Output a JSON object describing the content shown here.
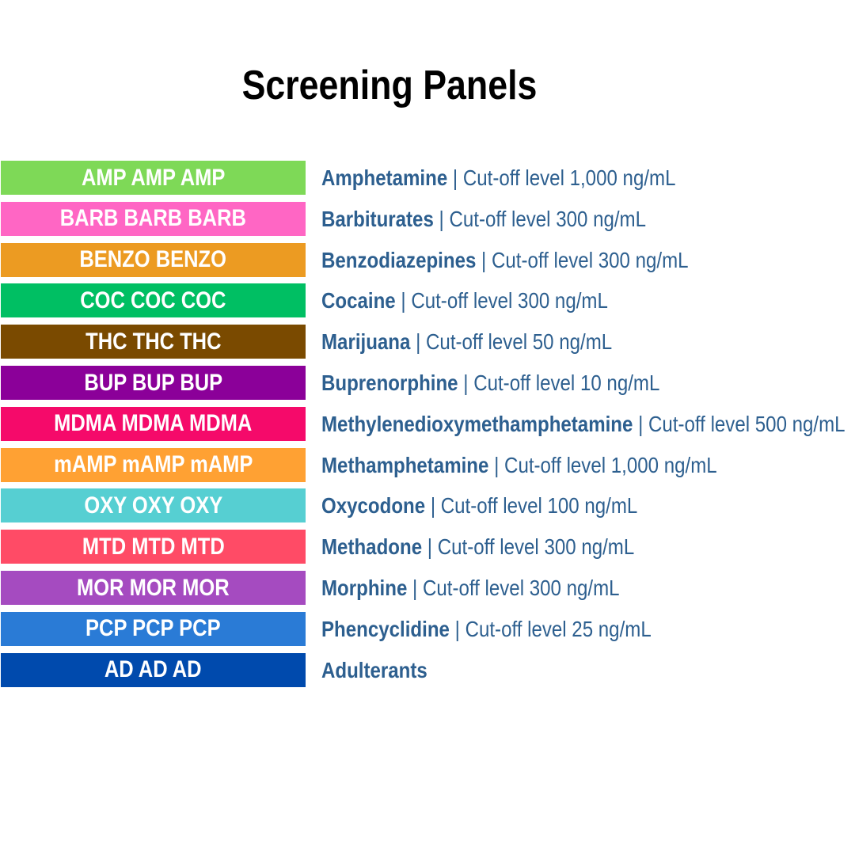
{
  "header": {
    "title": "Screening Panels"
  },
  "panels": [
    {
      "badge": "AMP AMP AMP",
      "color": "#7ed957",
      "name": "Amphetamine",
      "detail": "| Cut-off level 1,000 ng/mL"
    },
    {
      "badge": "BARB BARB BARB",
      "color": "#ff66c4",
      "name": "Barbiturates",
      "detail": "| Cut-off level 300 ng/mL"
    },
    {
      "badge": "BENZO BENZO",
      "color": "#ec9b22",
      "name": "Benzodiazepines",
      "detail": "| Cut-off level 300 ng/mL"
    },
    {
      "badge": "COC COC COC",
      "color": "#00bf63",
      "name": "Cocaine",
      "detail": "| Cut-off level 300 ng/mL"
    },
    {
      "badge": "THC THC THC",
      "color": "#7a4a00",
      "name": "Marijuana",
      "detail": "| Cut-off level 50 ng/mL"
    },
    {
      "badge": "BUP BUP BUP",
      "color": "#8b0099",
      "name": "Buprenorphine",
      "detail": "| Cut-off level 10 ng/mL"
    },
    {
      "badge": "MDMA MDMA MDMA",
      "color": "#f50a6a",
      "name": "Methylenedioxymethamphetamine",
      "detail": "| Cut-off level 500 ng/mL"
    },
    {
      "badge": "mAMP mAMP mAMP",
      "color": "#ffa133",
      "name": "Methamphetamine",
      "detail": "| Cut-off level 1,000 ng/mL"
    },
    {
      "badge": "OXY OXY OXY",
      "color": "#56cfd2",
      "name": "Oxycodone",
      "detail": "| Cut-off level 100 ng/mL"
    },
    {
      "badge": "MTD MTD MTD",
      "color": "#ff4b66",
      "name": "Methadone",
      "detail": "| Cut-off level 300 ng/mL"
    },
    {
      "badge": "MOR MOR MOR",
      "color": "#a54bc0",
      "name": "Morphine",
      "detail": "| Cut-off level 300 ng/mL"
    },
    {
      "badge": "PCP PCP PCP",
      "color": "#2a7bd6",
      "name": "Phencyclidine",
      "detail": "| Cut-off level 25 ng/mL"
    },
    {
      "badge": "AD AD AD",
      "color": "#004aad",
      "name": "Adulterants"
    }
  ]
}
